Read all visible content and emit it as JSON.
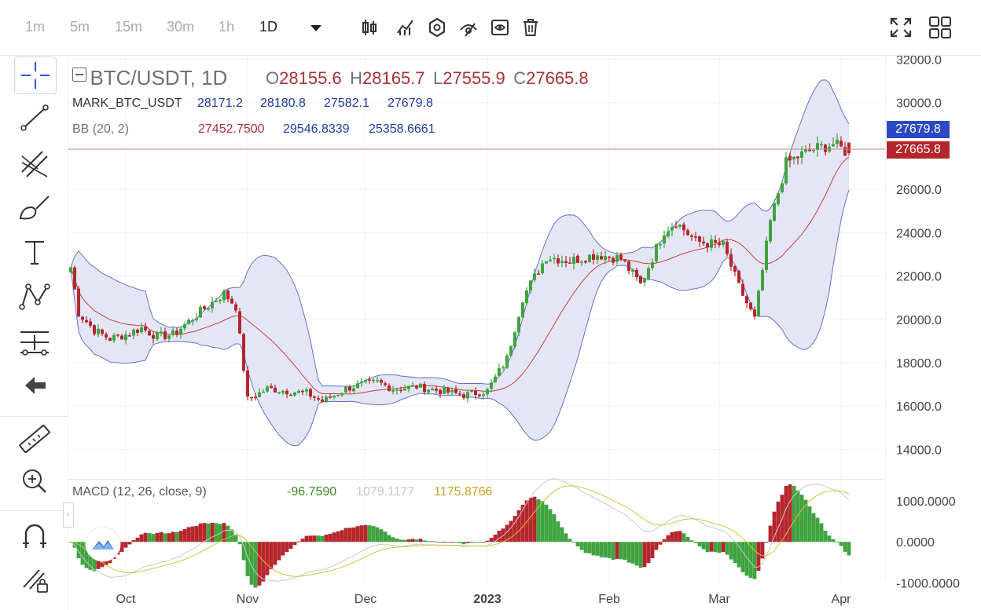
{
  "toolbar": {
    "timeframes": [
      "1m",
      "5m",
      "15m",
      "30m",
      "1h",
      "1D"
    ],
    "active_timeframe": "1D",
    "icons": [
      "dropdown-arrow-icon",
      "candlestick-icon",
      "indicators-icon",
      "settings-icon",
      "drawing-visibility-icon",
      "eye-icon",
      "trash-icon",
      "fullscreen-icon",
      "layout-grid-icon"
    ]
  },
  "sidebar": {
    "icons": [
      "crosshair-icon",
      "trend-line-icon",
      "fib-tool-icon",
      "brush-icon",
      "text-icon",
      "pattern-icon",
      "measure-position-icon",
      "back-arrow-icon",
      "ruler-icon",
      "zoom-in-icon",
      "magnet-icon",
      "lock-draw-icon"
    ]
  },
  "legend": {
    "symbol": "BTC/USDT, 1D",
    "ohlc": {
      "o_label": "O",
      "o": "28155.6",
      "h_label": "H",
      "h": "28165.7",
      "l_label": "L",
      "l": "27555.9",
      "c_label": "C",
      "c": "27665.8"
    },
    "mark": {
      "name": "MARK_BTC_USDT",
      "v1": "28171.2",
      "v2": "28180.8",
      "v3": "27582.1",
      "v4": "27679.8"
    },
    "bb": {
      "name": "BB (20, 2)",
      "mid": "27452.7500",
      "upper": "29546.8339",
      "lower": "25358.6661"
    },
    "macd": {
      "name": "MACD (12, 26, close, 9)",
      "hist": "-96.7590",
      "macd": "1079.1177",
      "signal": "1175.8766"
    }
  },
  "price_tags": {
    "mark": "27679.8",
    "last": "27665.8"
  },
  "colors": {
    "up": "#3fa33f",
    "down": "#b5262c",
    "band_fill": "#dfe2f3",
    "band_line": "#6472c9",
    "mid_line": "#c2403f",
    "macd_line": "#c8c8c8",
    "signal_line": "#d8c040",
    "mark_tag": "#2b49c4",
    "last_tag": "#b5262c"
  },
  "chart_data": {
    "type": "candlestick",
    "title": "BTC/USDT, 1D",
    "y_ticks": [
      "32000.0",
      "30000.0",
      "28000.0",
      "26000.0",
      "24000.0",
      "22000.0",
      "20000.0",
      "18000.0",
      "16000.0",
      "14000.0"
    ],
    "ylim": [
      13000,
      32200
    ],
    "x_ticks": [
      "Oct",
      "Nov",
      "Dec",
      "2023",
      "Feb",
      "Mar",
      "Apr"
    ],
    "x_tick_days": [
      14,
      45,
      75,
      106,
      137,
      165,
      196
    ],
    "close_anchors": [
      [
        0,
        22400
      ],
      [
        2,
        20300
      ],
      [
        6,
        19500
      ],
      [
        10,
        19100
      ],
      [
        14,
        19300
      ],
      [
        18,
        19600
      ],
      [
        22,
        19200
      ],
      [
        26,
        19300
      ],
      [
        30,
        19900
      ],
      [
        34,
        20500
      ],
      [
        39,
        21200
      ],
      [
        42,
        20600
      ],
      [
        45,
        16300
      ],
      [
        50,
        16800
      ],
      [
        55,
        16700
      ],
      [
        60,
        16600
      ],
      [
        64,
        16200
      ],
      [
        70,
        16800
      ],
      [
        74,
        17000
      ],
      [
        78,
        17100
      ],
      [
        82,
        16800
      ],
      [
        88,
        16900
      ],
      [
        94,
        16700
      ],
      [
        100,
        16500
      ],
      [
        106,
        16700
      ],
      [
        111,
        18200
      ],
      [
        115,
        21000
      ],
      [
        121,
        22900
      ],
      [
        127,
        22700
      ],
      [
        134,
        23000
      ],
      [
        140,
        22800
      ],
      [
        145,
        21600
      ],
      [
        151,
        24100
      ],
      [
        154,
        24500
      ],
      [
        159,
        23600
      ],
      [
        166,
        23400
      ],
      [
        170,
        21500
      ],
      [
        174,
        20000
      ],
      [
        178,
        24500
      ],
      [
        182,
        27200
      ],
      [
        188,
        27800
      ],
      [
        194,
        28100
      ],
      [
        198,
        27665.8
      ]
    ],
    "last_candle": {
      "open": 28155.6,
      "high": 28165.7,
      "low": 27555.9,
      "close": 27665.8
    },
    "bollinger": {
      "period": 20,
      "mult": 2,
      "last": {
        "mid": 27452.75,
        "upper": 29546.8339,
        "lower": 25358.6661
      }
    },
    "macd": {
      "fast": 12,
      "slow": 26,
      "signal": 9,
      "y_ticks": [
        "1000.0000",
        "0.0000",
        "-1000.0000"
      ],
      "ylim": [
        -1050,
        1500
      ],
      "last": {
        "hist": -96.759,
        "macd": 1079.1177,
        "signal": 1175.8766
      }
    }
  }
}
